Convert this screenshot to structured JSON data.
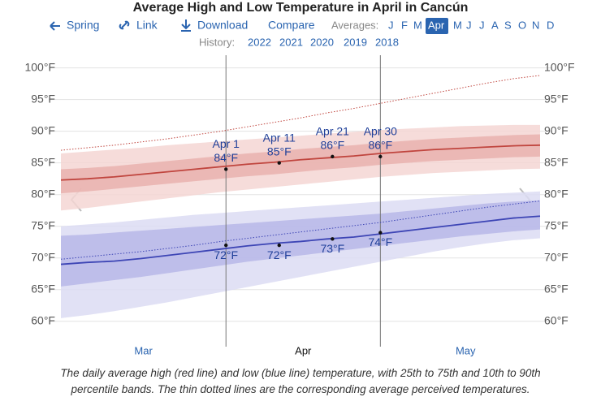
{
  "nav": {
    "links": [
      "Spring",
      "Link",
      "Download",
      "Compare"
    ],
    "averages_label": "Averages:",
    "months": [
      "J",
      "F",
      "M",
      "Apr",
      "M",
      "J",
      "J",
      "A",
      "S",
      "O",
      "N",
      "D"
    ],
    "selected_month_index": 3,
    "history_label": "History:",
    "history": [
      "2022",
      "2021",
      "2020",
      "2019",
      "2018"
    ]
  },
  "caption": "The daily average high (red line) and low (blue line) temperature, with 25th to 75th and 10th to 90th percentile bands. The thin dotted lines are the corresponding average perceived temperatures.",
  "chart_data": {
    "type": "line",
    "title": "Average High and Low Temperature in April in Cancún",
    "x": [
      60,
      65,
      70,
      75,
      80,
      85,
      90,
      95,
      100,
      105,
      110,
      115,
      120,
      125,
      130,
      135,
      140,
      145,
      150
    ],
    "xlim": [
      60,
      150
    ],
    "xticks": [
      {
        "value": 75.5,
        "label": "Mar"
      },
      {
        "value": 105.5,
        "label": "Apr"
      },
      {
        "value": 136,
        "label": "May"
      }
    ],
    "ylim": [
      56,
      102
    ],
    "yticks": [
      {
        "value": 60,
        "label": "60°F"
      },
      {
        "value": 65,
        "label": "65°F"
      },
      {
        "value": 70,
        "label": "70°F"
      },
      {
        "value": 75,
        "label": "75°F"
      },
      {
        "value": 80,
        "label": "80°F"
      },
      {
        "value": 85,
        "label": "85°F"
      },
      {
        "value": 90,
        "label": "90°F"
      },
      {
        "value": 95,
        "label": "95°F"
      },
      {
        "value": 100,
        "label": "100°F"
      }
    ],
    "grid": true,
    "bands": [
      {
        "color": "#f4d6d4",
        "lower": [
          77.5,
          77.9,
          78.4,
          78.9,
          79.4,
          79.9,
          80.4,
          80.8,
          81.2,
          81.6,
          82.0,
          82.4,
          82.8,
          83.1,
          83.4,
          83.6,
          83.8,
          84.0,
          84.1
        ],
        "upper": [
          86.5,
          86.8,
          87.1,
          87.4,
          87.8,
          88.1,
          88.4,
          88.7,
          89.0,
          89.3,
          89.6,
          89.9,
          90.2,
          90.4,
          90.6,
          90.8,
          90.9,
          91.0,
          91.0
        ]
      },
      {
        "color": "#e9b1ae",
        "lower": [
          80.2,
          80.5,
          80.9,
          81.3,
          81.7,
          82.1,
          82.5,
          82.9,
          83.2,
          83.6,
          84.0,
          84.3,
          84.7,
          85.0,
          85.3,
          85.5,
          85.7,
          85.9,
          86.0
        ],
        "upper": [
          84.0,
          84.2,
          84.5,
          84.9,
          85.3,
          85.7,
          86.1,
          86.5,
          86.8,
          87.2,
          87.5,
          87.8,
          88.2,
          88.5,
          88.8,
          89.0,
          89.2,
          89.4,
          89.5
        ]
      },
      {
        "color": "#dcdcf3",
        "lower": [
          60.5,
          61.0,
          61.6,
          62.3,
          63.0,
          63.8,
          64.6,
          65.4,
          66.2,
          67.0,
          67.8,
          68.6,
          69.4,
          70.2,
          71.0,
          71.7,
          72.3,
          72.8,
          73.1
        ],
        "upper": [
          75.0,
          75.3,
          75.6,
          76.0,
          76.4,
          76.8,
          77.1,
          77.4,
          77.7,
          78.0,
          78.3,
          78.6,
          78.9,
          79.2,
          79.5,
          79.8,
          80.1,
          80.3,
          80.5
        ]
      },
      {
        "color": "#b7b7e7",
        "lower": [
          65.5,
          66.0,
          66.5,
          67.0,
          67.6,
          68.2,
          68.8,
          69.4,
          69.9,
          70.4,
          70.9,
          71.4,
          71.9,
          72.4,
          72.9,
          73.4,
          73.8,
          74.2,
          74.5
        ],
        "upper": [
          73.5,
          73.7,
          74.0,
          74.3,
          74.6,
          74.9,
          75.2,
          75.5,
          75.8,
          76.1,
          76.4,
          76.7,
          77.0,
          77.4,
          77.8,
          78.2,
          78.6,
          78.9,
          79.1
        ]
      }
    ],
    "series": [
      {
        "color": "#c0453e",
        "style": "solid",
        "values": [
          82.3,
          82.5,
          82.8,
          83.2,
          83.6,
          84.0,
          84.4,
          84.8,
          85.1,
          85.5,
          85.8,
          86.1,
          86.5,
          86.8,
          87.1,
          87.3,
          87.5,
          87.7,
          87.8
        ]
      },
      {
        "color": "#c0453e",
        "style": "dotted",
        "values": [
          87.0,
          87.4,
          87.8,
          88.3,
          88.8,
          89.4,
          90.0,
          90.7,
          91.4,
          92.1,
          92.9,
          93.6,
          94.4,
          95.2,
          96.0,
          96.8,
          97.6,
          98.3,
          98.8
        ]
      },
      {
        "color": "#3d45b5",
        "style": "solid",
        "values": [
          69.0,
          69.3,
          69.5,
          69.9,
          70.4,
          70.9,
          71.4,
          71.9,
          72.3,
          72.6,
          73.0,
          73.3,
          73.8,
          74.3,
          74.8,
          75.3,
          75.8,
          76.3,
          76.6
        ]
      },
      {
        "color": "#3d45b5",
        "style": "dotted",
        "values": [
          69.8,
          70.2,
          70.6,
          71.0,
          71.5,
          72.0,
          72.6,
          73.1,
          73.6,
          74.1,
          74.6,
          75.1,
          75.6,
          76.2,
          76.8,
          77.4,
          78.0,
          78.5,
          79.0
        ]
      }
    ],
    "range_lines": [
      91,
      120
    ],
    "annotations": [
      {
        "x": 91,
        "label": "Apr 1",
        "high": 84,
        "high_label": "84°F",
        "low": 72,
        "low_label": "72°F"
      },
      {
        "x": 101,
        "label": "Apr 11",
        "high": 85,
        "high_label": "85°F",
        "low": 72,
        "low_label": "72°F"
      },
      {
        "x": 111,
        "label": "Apr 21",
        "high": 86,
        "high_label": "86°F",
        "low": 73,
        "low_label": "73°F"
      },
      {
        "x": 120,
        "label": "Apr 30",
        "high": 86,
        "high_label": "86°F",
        "low": 74,
        "low_label": "74°F"
      }
    ]
  }
}
